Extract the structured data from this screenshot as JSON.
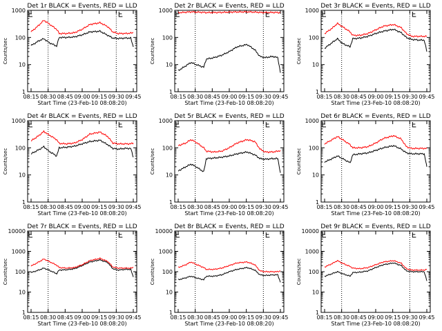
{
  "common": {
    "type": "line",
    "xlabel": "Start Time (23-Feb-10 08:08:20)",
    "ylabel": "Counts/sec",
    "yscale": "log",
    "x_tick_labels": [
      "08:15",
      "08:30",
      "08:45",
      "09:00",
      "09:15",
      "09:30",
      "09:45"
    ],
    "x_range_minutes": [
      0,
      40
    ],
    "vertical_marker_times": [
      "08:30",
      "09:30"
    ],
    "series_colors": {
      "events": "#000000",
      "lld": "#ff0000"
    }
  },
  "chart_data": [
    {
      "title": "Det 1r BLACK = Events, RED = LLD",
      "ylim": [
        1,
        1000
      ],
      "y_tick_labels": [
        "1",
        "10",
        "100",
        "1000"
      ],
      "x": [
        0,
        3,
        5,
        7,
        10,
        11,
        14,
        17,
        20,
        23,
        27,
        30,
        32,
        34,
        37,
        39,
        40
      ],
      "events": [
        50,
        75,
        90,
        65,
        48,
        100,
        100,
        105,
        125,
        160,
        170,
        120,
        95,
        92,
        95,
        95,
        45
      ],
      "lld": [
        160,
        280,
        430,
        320,
        200,
        140,
        140,
        150,
        200,
        300,
        350,
        250,
        160,
        140,
        140,
        145,
        150
      ]
    },
    {
      "title": "Det 2r BLACK = Events, RED = LLD",
      "ylim": [
        1,
        1000
      ],
      "y_tick_labels": [
        "1",
        "10",
        "100",
        "1000"
      ],
      "x": [
        0,
        3,
        5,
        7,
        10,
        11,
        14,
        17,
        20,
        23,
        27,
        30,
        32,
        34,
        37,
        39,
        40
      ],
      "events": [
        6,
        9,
        12,
        10,
        8,
        16,
        18,
        22,
        30,
        45,
        55,
        35,
        20,
        18,
        20,
        18,
        5
      ],
      "lld": [
        820,
        850,
        880,
        860,
        840,
        830,
        830,
        840,
        860,
        870,
        880,
        860,
        840,
        830,
        840,
        830,
        830
      ]
    },
    {
      "title": "Det 3r BLACK = Events, RED = LLD",
      "ylim": [
        1,
        1000
      ],
      "y_tick_labels": [
        "1",
        "10",
        "100",
        "1000"
      ],
      "x": [
        0,
        3,
        5,
        7,
        10,
        11,
        14,
        17,
        20,
        23,
        27,
        30,
        32,
        34,
        37,
        39,
        40
      ],
      "events": [
        40,
        65,
        90,
        60,
        45,
        90,
        95,
        110,
        140,
        170,
        200,
        150,
        100,
        85,
        80,
        80,
        30
      ],
      "lld": [
        140,
        220,
        330,
        250,
        160,
        120,
        120,
        140,
        190,
        260,
        300,
        230,
        140,
        110,
        110,
        110,
        110
      ]
    },
    {
      "title": "Det 4r BLACK = Events, RED = LLD",
      "ylim": [
        1,
        1000
      ],
      "y_tick_labels": [
        "1",
        "10",
        "100",
        "1000"
      ],
      "x": [
        0,
        3,
        5,
        7,
        10,
        11,
        14,
        17,
        20,
        23,
        27,
        30,
        32,
        34,
        37,
        39,
        40
      ],
      "events": [
        60,
        85,
        110,
        75,
        50,
        100,
        105,
        115,
        140,
        170,
        190,
        130,
        95,
        90,
        95,
        95,
        45
      ],
      "lld": [
        180,
        280,
        400,
        300,
        200,
        145,
        140,
        150,
        200,
        320,
        380,
        260,
        150,
        140,
        140,
        140,
        150
      ]
    },
    {
      "title": "Det 5r BLACK = Events, RED = LLD",
      "ylim": [
        1,
        1000
      ],
      "y_tick_labels": [
        "1",
        "10",
        "100",
        "1000"
      ],
      "x": [
        0,
        3,
        5,
        7,
        10,
        11,
        14,
        17,
        20,
        23,
        27,
        30,
        32,
        34,
        37,
        39,
        40
      ],
      "events": [
        14,
        20,
        25,
        20,
        13,
        40,
        42,
        45,
        50,
        60,
        70,
        55,
        40,
        38,
        40,
        40,
        12
      ],
      "lld": [
        120,
        150,
        200,
        160,
        100,
        75,
        70,
        75,
        100,
        150,
        200,
        170,
        90,
        70,
        70,
        75,
        80
      ]
    },
    {
      "title": "Det 6r BLACK = Events, RED = LLD",
      "ylim": [
        1,
        1000
      ],
      "y_tick_labels": [
        "1",
        "10",
        "100",
        "1000"
      ],
      "x": [
        0,
        3,
        5,
        7,
        10,
        11,
        14,
        17,
        20,
        23,
        27,
        30,
        32,
        34,
        37,
        39,
        40
      ],
      "events": [
        30,
        40,
        50,
        40,
        28,
        55,
        60,
        65,
        80,
        100,
        120,
        90,
        65,
        60,
        60,
        60,
        20
      ],
      "lld": [
        140,
        200,
        260,
        200,
        130,
        100,
        100,
        110,
        150,
        220,
        280,
        210,
        110,
        95,
        95,
        95,
        95
      ]
    },
    {
      "title": "Det 7r BLACK = Events, RED = LLD",
      "ylim": [
        1,
        10000
      ],
      "y_tick_labels": [
        "1",
        "10",
        "100",
        "1000",
        "10000"
      ],
      "x": [
        0,
        3,
        5,
        7,
        10,
        11,
        14,
        17,
        20,
        23,
        27,
        30,
        32,
        34,
        37,
        39,
        40
      ],
      "events": [
        90,
        120,
        150,
        120,
        80,
        120,
        125,
        140,
        200,
        300,
        380,
        280,
        140,
        120,
        130,
        130,
        55
      ],
      "lld": [
        190,
        300,
        420,
        320,
        210,
        160,
        150,
        160,
        220,
        350,
        450,
        320,
        170,
        150,
        150,
        150,
        160
      ]
    },
    {
      "title": "Det 8r BLACK = Events, RED = LLD",
      "ylim": [
        1,
        10000
      ],
      "y_tick_labels": [
        "1",
        "10",
        "100",
        "1000",
        "10000"
      ],
      "x": [
        0,
        3,
        5,
        7,
        10,
        11,
        14,
        17,
        20,
        23,
        27,
        30,
        32,
        34,
        37,
        39,
        40
      ],
      "events": [
        40,
        50,
        60,
        50,
        40,
        60,
        60,
        70,
        100,
        130,
        160,
        120,
        70,
        65,
        70,
        70,
        30
      ],
      "lld": [
        160,
        220,
        300,
        230,
        160,
        130,
        130,
        150,
        200,
        270,
        300,
        220,
        110,
        100,
        100,
        100,
        110
      ]
    },
    {
      "title": "Det 9r BLACK = Events, RED = LLD",
      "ylim": [
        1,
        10000
      ],
      "y_tick_labels": [
        "1",
        "10",
        "100",
        "1000",
        "10000"
      ],
      "x": [
        0,
        3,
        5,
        7,
        10,
        11,
        14,
        17,
        20,
        23,
        27,
        30,
        32,
        34,
        37,
        39,
        40
      ],
      "events": [
        60,
        80,
        100,
        80,
        60,
        90,
        95,
        110,
        160,
        220,
        270,
        200,
        110,
        100,
        100,
        100,
        35
      ],
      "lld": [
        170,
        250,
        350,
        260,
        180,
        150,
        140,
        160,
        220,
        300,
        350,
        260,
        140,
        120,
        120,
        120,
        130
      ]
    }
  ]
}
